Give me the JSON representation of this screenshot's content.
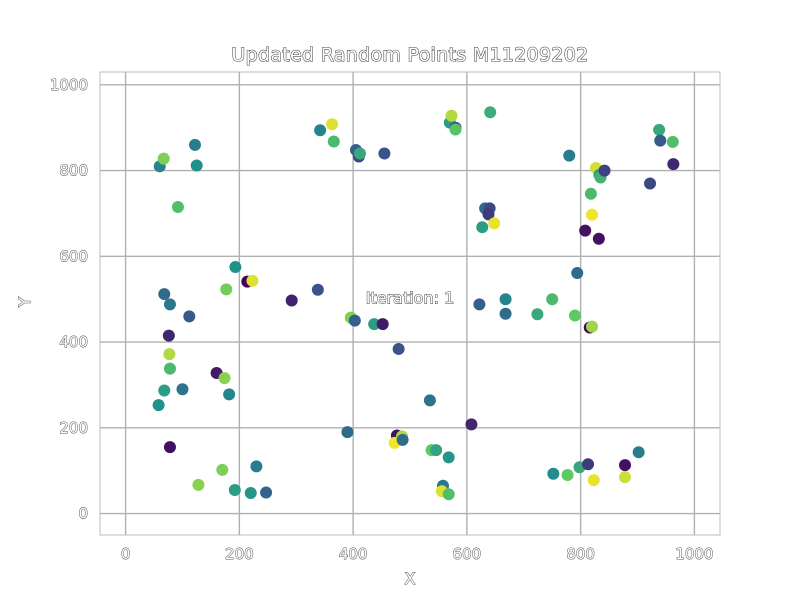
{
  "chart_data": {
    "type": "scatter",
    "title": "Updated Random Points M11209202",
    "xlabel": "X",
    "ylabel": "Y",
    "xlim": [
      -45,
      1045
    ],
    "ylim": [
      -50,
      1030
    ],
    "xticks": [
      0,
      200,
      400,
      600,
      800,
      1000
    ],
    "yticks": [
      0,
      200,
      400,
      600,
      800,
      1000
    ],
    "grid": true,
    "annotation": {
      "text": "Iteration: 1",
      "x": 500,
      "y": 490
    },
    "colormap": "viridis",
    "points": [
      {
        "x": 60,
        "y": 810,
        "c": 0.45
      },
      {
        "x": 67,
        "y": 828,
        "c": 0.8
      },
      {
        "x": 122,
        "y": 860,
        "c": 0.42
      },
      {
        "x": 125,
        "y": 812,
        "c": 0.5
      },
      {
        "x": 92,
        "y": 715,
        "c": 0.7
      },
      {
        "x": 68,
        "y": 512,
        "c": 0.35
      },
      {
        "x": 78,
        "y": 488,
        "c": 0.4
      },
      {
        "x": 112,
        "y": 460,
        "c": 0.28
      },
      {
        "x": 76,
        "y": 415,
        "c": 0.12
      },
      {
        "x": 77,
        "y": 372,
        "c": 0.88
      },
      {
        "x": 78,
        "y": 338,
        "c": 0.68
      },
      {
        "x": 68,
        "y": 287,
        "c": 0.55
      },
      {
        "x": 100,
        "y": 290,
        "c": 0.38
      },
      {
        "x": 58,
        "y": 253,
        "c": 0.5
      },
      {
        "x": 78,
        "y": 155,
        "c": 0.05
      },
      {
        "x": 128,
        "y": 67,
        "c": 0.82
      },
      {
        "x": 160,
        "y": 328,
        "c": 0.08
      },
      {
        "x": 174,
        "y": 316,
        "c": 0.82
      },
      {
        "x": 182,
        "y": 278,
        "c": 0.45
      },
      {
        "x": 170,
        "y": 102,
        "c": 0.8
      },
      {
        "x": 192,
        "y": 55,
        "c": 0.55
      },
      {
        "x": 220,
        "y": 48,
        "c": 0.52
      },
      {
        "x": 247,
        "y": 49,
        "c": 0.32
      },
      {
        "x": 230,
        "y": 110,
        "c": 0.42
      },
      {
        "x": 193,
        "y": 575,
        "c": 0.5
      },
      {
        "x": 177,
        "y": 523,
        "c": 0.78
      },
      {
        "x": 214,
        "y": 541,
        "c": 0.0
      },
      {
        "x": 223,
        "y": 543,
        "c": 0.95
      },
      {
        "x": 292,
        "y": 497,
        "c": 0.1
      },
      {
        "x": 338,
        "y": 522,
        "c": 0.25
      },
      {
        "x": 342,
        "y": 894,
        "c": 0.45
      },
      {
        "x": 363,
        "y": 908,
        "c": 0.95
      },
      {
        "x": 366,
        "y": 868,
        "c": 0.68
      },
      {
        "x": 405,
        "y": 848,
        "c": 0.3
      },
      {
        "x": 410,
        "y": 833,
        "c": 0.22
      },
      {
        "x": 412,
        "y": 840,
        "c": 0.6
      },
      {
        "x": 455,
        "y": 840,
        "c": 0.25
      },
      {
        "x": 396,
        "y": 457,
        "c": 0.8
      },
      {
        "x": 403,
        "y": 450,
        "c": 0.3
      },
      {
        "x": 437,
        "y": 442,
        "c": 0.55
      },
      {
        "x": 452,
        "y": 442,
        "c": 0.08
      },
      {
        "x": 480,
        "y": 384,
        "c": 0.25
      },
      {
        "x": 390,
        "y": 190,
        "c": 0.35
      },
      {
        "x": 477,
        "y": 182,
        "c": 0.05
      },
      {
        "x": 473,
        "y": 165,
        "c": 0.98
      },
      {
        "x": 486,
        "y": 180,
        "c": 0.88
      },
      {
        "x": 487,
        "y": 172,
        "c": 0.35
      },
      {
        "x": 535,
        "y": 264,
        "c": 0.38
      },
      {
        "x": 538,
        "y": 148,
        "c": 0.75
      },
      {
        "x": 546,
        "y": 148,
        "c": 0.58
      },
      {
        "x": 568,
        "y": 131,
        "c": 0.52
      },
      {
        "x": 608,
        "y": 208,
        "c": 0.12
      },
      {
        "x": 558,
        "y": 65,
        "c": 0.4
      },
      {
        "x": 556,
        "y": 52,
        "c": 0.95
      },
      {
        "x": 568,
        "y": 45,
        "c": 0.7
      },
      {
        "x": 570,
        "y": 912,
        "c": 0.55
      },
      {
        "x": 573,
        "y": 928,
        "c": 0.88
      },
      {
        "x": 580,
        "y": 900,
        "c": 0.25
      },
      {
        "x": 580,
        "y": 896,
        "c": 0.72
      },
      {
        "x": 641,
        "y": 936,
        "c": 0.62
      },
      {
        "x": 632,
        "y": 712,
        "c": 0.35
      },
      {
        "x": 640,
        "y": 712,
        "c": 0.22
      },
      {
        "x": 638,
        "y": 698,
        "c": 0.18
      },
      {
        "x": 648,
        "y": 677,
        "c": 0.97
      },
      {
        "x": 627,
        "y": 668,
        "c": 0.55
      },
      {
        "x": 622,
        "y": 488,
        "c": 0.3
      },
      {
        "x": 668,
        "y": 500,
        "c": 0.45
      },
      {
        "x": 668,
        "y": 466,
        "c": 0.35
      },
      {
        "x": 724,
        "y": 465,
        "c": 0.6
      },
      {
        "x": 750,
        "y": 500,
        "c": 0.68
      },
      {
        "x": 790,
        "y": 462,
        "c": 0.75
      },
      {
        "x": 794,
        "y": 561,
        "c": 0.35
      },
      {
        "x": 816,
        "y": 434,
        "c": 0.02
      },
      {
        "x": 820,
        "y": 436,
        "c": 0.85
      },
      {
        "x": 780,
        "y": 835,
        "c": 0.42
      },
      {
        "x": 808,
        "y": 660,
        "c": 0.05
      },
      {
        "x": 820,
        "y": 697,
        "c": 0.98
      },
      {
        "x": 818,
        "y": 746,
        "c": 0.68
      },
      {
        "x": 827,
        "y": 806,
        "c": 0.93
      },
      {
        "x": 833,
        "y": 790,
        "c": 0.55
      },
      {
        "x": 835,
        "y": 784,
        "c": 0.65
      },
      {
        "x": 842,
        "y": 800,
        "c": 0.2
      },
      {
        "x": 832,
        "y": 641,
        "c": 0.05
      },
      {
        "x": 752,
        "y": 93,
        "c": 0.48
      },
      {
        "x": 777,
        "y": 90,
        "c": 0.75
      },
      {
        "x": 798,
        "y": 108,
        "c": 0.6
      },
      {
        "x": 813,
        "y": 115,
        "c": 0.18
      },
      {
        "x": 823,
        "y": 78,
        "c": 0.97
      },
      {
        "x": 878,
        "y": 85,
        "c": 0.92
      },
      {
        "x": 878,
        "y": 113,
        "c": 0.05
      },
      {
        "x": 902,
        "y": 143,
        "c": 0.42
      },
      {
        "x": 922,
        "y": 770,
        "c": 0.22
      },
      {
        "x": 938,
        "y": 895,
        "c": 0.6
      },
      {
        "x": 940,
        "y": 870,
        "c": 0.28
      },
      {
        "x": 962,
        "y": 867,
        "c": 0.7
      },
      {
        "x": 963,
        "y": 815,
        "c": 0.12
      }
    ]
  }
}
